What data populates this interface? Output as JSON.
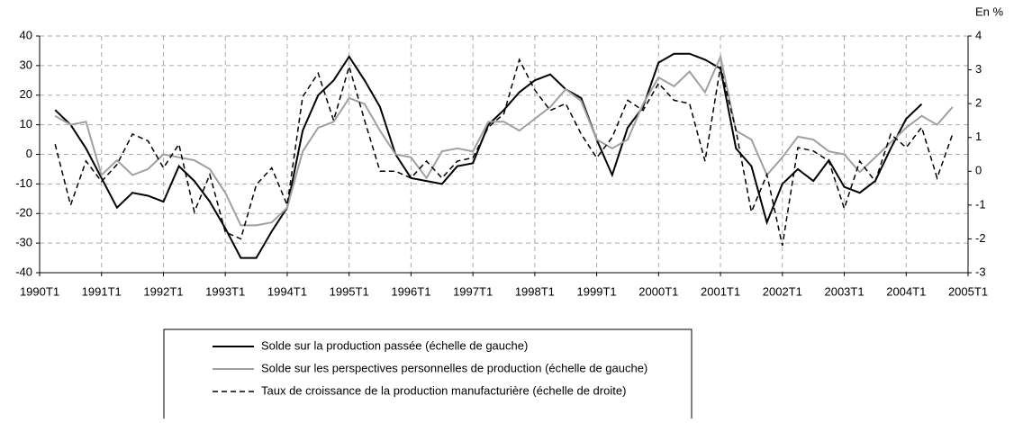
{
  "chart_data": {
    "type": "line",
    "y2_label": "En %",
    "categories": [
      "1990T1",
      null,
      null,
      null,
      "1991T1",
      null,
      null,
      null,
      "1992T1",
      null,
      null,
      null,
      "1993T1",
      null,
      null,
      null,
      "1994T1",
      null,
      null,
      null,
      "1995T1",
      null,
      null,
      null,
      "1996T1",
      null,
      null,
      null,
      "1997T1",
      null,
      null,
      null,
      "1998T1",
      null,
      null,
      null,
      "1999T1",
      null,
      null,
      null,
      "2000T1",
      null,
      null,
      null,
      "2001T1",
      null,
      null,
      null,
      "2002T1",
      null,
      null,
      null,
      "2003T1",
      null,
      null,
      null,
      "2004T1",
      null,
      null,
      null,
      "2005T1"
    ],
    "series": [
      {
        "name": "Solde sur la production passée (échelle de gauche)",
        "color": "#000000",
        "dashed": false,
        "values": [
          null,
          15,
          10,
          2,
          -8,
          -18,
          -13,
          -14,
          -16,
          -4,
          -9,
          -16,
          -25,
          -35,
          -35,
          -26,
          -18,
          8,
          20,
          25,
          33,
          25,
          16,
          0,
          -8,
          -9,
          -10,
          -4,
          -3,
          10,
          15,
          21,
          25,
          27,
          22,
          19,
          5,
          -7,
          9,
          16,
          31,
          34,
          34,
          32,
          29,
          2,
          -4,
          -23,
          -10,
          -5,
          -9,
          -2,
          -11,
          -13,
          -9,
          2,
          12,
          17,
          null,
          null,
          null
        ]
      },
      {
        "name": "Solde sur les perspectives personnelles de production (échelle de gauche)",
        "color": "#a0a0a0",
        "dashed": false,
        "values": [
          null,
          13,
          10,
          11,
          -7,
          -2,
          -7,
          -5,
          0,
          -1,
          -2,
          -5,
          -13,
          -24,
          -24,
          -23,
          -18,
          1,
          9,
          11,
          19,
          17,
          8,
          0,
          -1,
          -8,
          1,
          2,
          1,
          11,
          11,
          8,
          12,
          16,
          22,
          18,
          5,
          2,
          5,
          17,
          26,
          23,
          28,
          21,
          33,
          8,
          5,
          -7,
          -1,
          6,
          5,
          1,
          0,
          -6,
          -1,
          4,
          9,
          13,
          10,
          16,
          null
        ]
      },
      {
        "name": "Taux de croissance de la production manufacturière (échelle de droite)",
        "color": "#000000",
        "dashed": true,
        "axis": "y2",
        "values": [
          null,
          0.8,
          -1,
          0.3,
          -0.3,
          0.2,
          1.1,
          0.9,
          0.1,
          0.8,
          -1.2,
          -0.1,
          -1.8,
          -2,
          -0.4,
          0.1,
          -1,
          2.2,
          2.9,
          1.5,
          3.1,
          1.5,
          0,
          0,
          -0.2,
          0.3,
          -0.2,
          0.3,
          0.4,
          1.3,
          1.7,
          3.3,
          2.4,
          1.8,
          2,
          1.1,
          0.4,
          1,
          2.1,
          1.8,
          2.6,
          2.1,
          2,
          0.3,
          3.1,
          1.2,
          -1.2,
          -0.1,
          -2.2,
          0.7,
          0.6,
          0.3,
          -1.1,
          0.3,
          -0.3,
          1.1,
          0.7,
          1.3,
          -0.2,
          1.1,
          null
        ]
      }
    ],
    "ylim": [
      -40,
      40
    ],
    "yticks": [
      -40,
      -30,
      -20,
      -10,
      0,
      10,
      20,
      30,
      40
    ],
    "y2lim": [
      -3,
      4
    ],
    "y2ticks": [
      -3,
      -2,
      -1,
      0,
      1,
      2,
      3,
      4
    ],
    "grid": true
  }
}
